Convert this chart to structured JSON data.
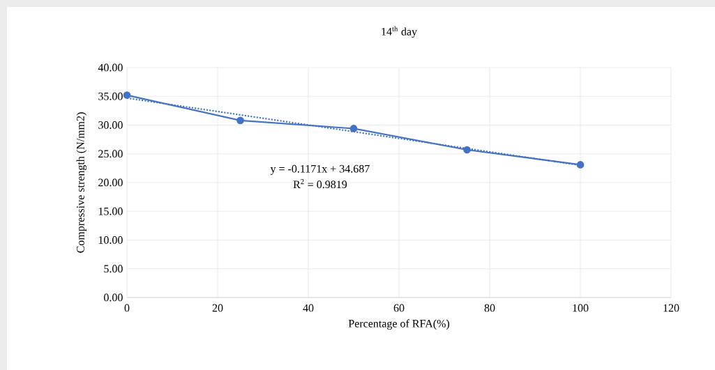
{
  "chart_data": {
    "type": "line",
    "title": "14$^{th}$ day",
    "xlabel": "Percentage of RFA(%)",
    "ylabel": "Compressive strength (N/mm2)",
    "x": [
      0,
      25,
      50,
      75,
      100
    ],
    "series": [
      {
        "color": "#4472c4",
        "values": [
          35.2,
          30.8,
          29.4,
          25.7,
          23.1
        ],
        "marker": "circle",
        "line_style": "solid"
      },
      {
        "color": "#4472c4",
        "x": [
          0,
          100
        ],
        "values": [
          34.7,
          23.0
        ],
        "marker": "none",
        "line_style": "dotted"
      }
    ],
    "annotations": [
      "y = -0.1171x + 34.687",
      "R$^{2}$ = 0.9819"
    ],
    "xlim": [
      0,
      120
    ],
    "xticks": [
      0,
      20,
      40,
      60,
      80,
      100,
      120
    ],
    "ylim": [
      0,
      40
    ],
    "yticks": [
      {
        "value": 0,
        "label": "0.00"
      },
      {
        "value": 5,
        "label": "5.00"
      },
      {
        "value": 10,
        "label": "10.00"
      },
      {
        "value": 15,
        "label": "15.00"
      },
      {
        "value": 20,
        "label": "20.00"
      },
      {
        "value": 25,
        "label": "25.00"
      },
      {
        "value": 30,
        "label": "30.00"
      },
      {
        "value": 35,
        "label": "35.00"
      },
      {
        "value": 40,
        "label": "40.00"
      }
    ],
    "grid": true
  }
}
